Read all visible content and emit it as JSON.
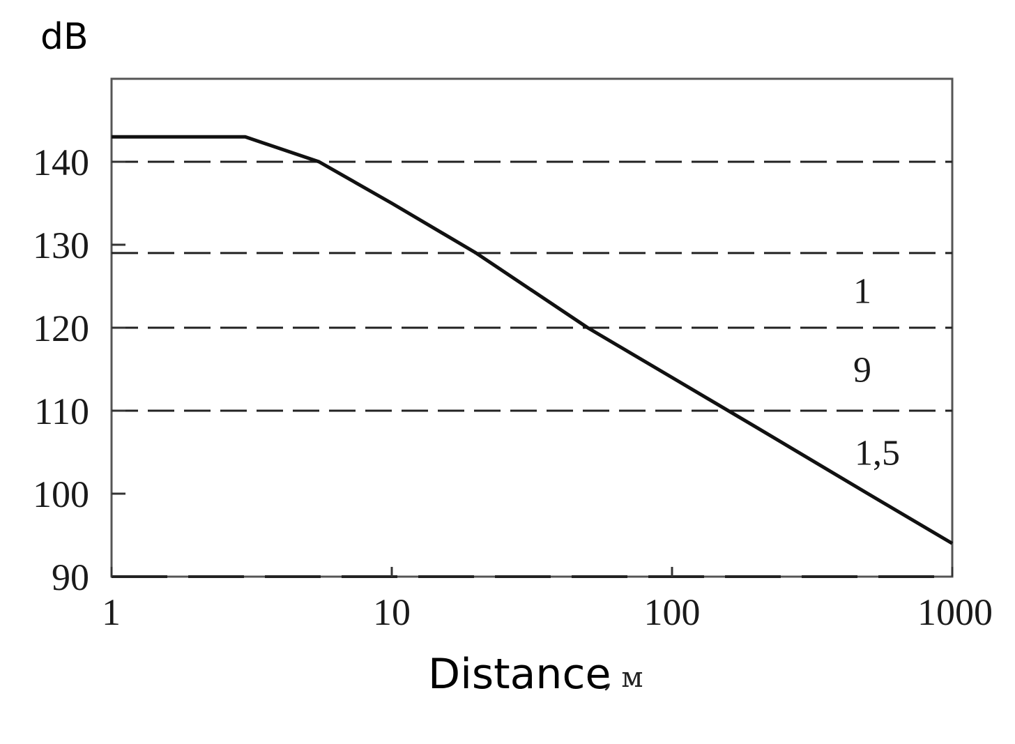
{
  "chart_data": {
    "type": "line",
    "ylabel": "dB",
    "xlabel": "Distance",
    "xlabel_unit": ", м",
    "x_scale": "log",
    "xlim": [
      1,
      1000
    ],
    "ylim": [
      90,
      150
    ],
    "x_ticks": [
      1,
      10,
      100,
      1000
    ],
    "x_tick_labels": [
      "1",
      "10",
      "100",
      "1000"
    ],
    "y_ticks": [
      90,
      100,
      110,
      120,
      130,
      140
    ],
    "y_tick_labels": [
      "90",
      "100",
      "110",
      "120",
      "130",
      "140"
    ],
    "grid": false,
    "reference_lines": [
      {
        "y": 140,
        "style": "dashed"
      },
      {
        "y": 129,
        "style": "dashed"
      },
      {
        "y": 120,
        "style": "dashed"
      },
      {
        "y": 110,
        "style": "dashed"
      }
    ],
    "annotations": [
      {
        "text": "1",
        "x": 500,
        "y": 124.5
      },
      {
        "text": "9",
        "x": 500,
        "y": 115
      },
      {
        "text": "1,5",
        "x": 500,
        "y": 105
      }
    ],
    "series": [
      {
        "x": [
          1,
          3,
          5.5,
          10,
          20,
          50,
          100,
          200,
          500,
          1000
        ],
        "y": [
          143,
          143,
          140,
          135,
          129,
          120,
          114,
          108,
          100,
          94
        ]
      }
    ]
  }
}
